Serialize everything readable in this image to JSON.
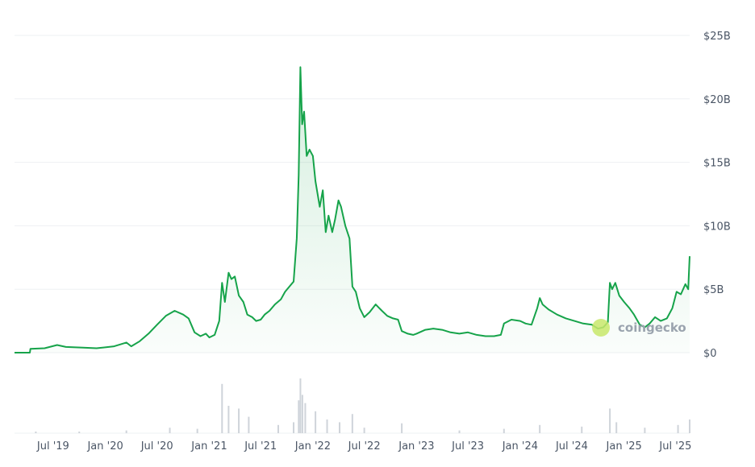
{
  "chart_data": {
    "type": "area",
    "line_color": "#16a34a",
    "fill_color": "#16a34a",
    "volume_color": "#cfd4da",
    "ylim": [
      0,
      25
    ],
    "yticks": [
      {
        "value": 25,
        "label": "$25B"
      },
      {
        "value": 20,
        "label": "$20B"
      },
      {
        "value": 15,
        "label": "$15B"
      },
      {
        "value": 10,
        "label": "$10B"
      },
      {
        "value": 5,
        "label": "$5B"
      },
      {
        "value": 0,
        "label": "$0"
      }
    ],
    "xlim": [
      "2019-02-15",
      "2025-08-20"
    ],
    "xticks": [
      {
        "date": "2019-07-01",
        "label": "Jul '19"
      },
      {
        "date": "2020-01-01",
        "label": "Jan '20"
      },
      {
        "date": "2020-07-01",
        "label": "Jul '20"
      },
      {
        "date": "2021-01-01",
        "label": "Jan '21"
      },
      {
        "date": "2021-07-01",
        "label": "Jul '21"
      },
      {
        "date": "2022-01-01",
        "label": "Jan '22"
      },
      {
        "date": "2022-07-01",
        "label": "Jul '22"
      },
      {
        "date": "2023-01-01",
        "label": "Jan '23"
      },
      {
        "date": "2023-07-01",
        "label": "Jul '23"
      },
      {
        "date": "2024-01-01",
        "label": "Jan '24"
      },
      {
        "date": "2024-07-01",
        "label": "Jul '24"
      },
      {
        "date": "2025-01-01",
        "label": "Jan '25"
      },
      {
        "date": "2025-07-01",
        "label": "Jul '25"
      }
    ],
    "series": [
      {
        "unit": "billions USD",
        "points": [
          [
            "2019-02-15",
            0.0
          ],
          [
            "2019-04-10",
            0.0
          ],
          [
            "2019-04-12",
            0.3
          ],
          [
            "2019-06-01",
            0.35
          ],
          [
            "2019-07-15",
            0.6
          ],
          [
            "2019-08-15",
            0.45
          ],
          [
            "2019-10-15",
            0.4
          ],
          [
            "2019-12-01",
            0.35
          ],
          [
            "2020-02-01",
            0.5
          ],
          [
            "2020-03-15",
            0.8
          ],
          [
            "2020-04-01",
            0.5
          ],
          [
            "2020-05-01",
            0.9
          ],
          [
            "2020-06-01",
            1.5
          ],
          [
            "2020-07-01",
            2.2
          ],
          [
            "2020-08-01",
            2.9
          ],
          [
            "2020-09-01",
            3.3
          ],
          [
            "2020-10-01",
            3.0
          ],
          [
            "2020-10-20",
            2.7
          ],
          [
            "2020-11-10",
            1.6
          ],
          [
            "2020-12-01",
            1.3
          ],
          [
            "2020-12-20",
            1.5
          ],
          [
            "2021-01-01",
            1.2
          ],
          [
            "2021-01-20",
            1.4
          ],
          [
            "2021-02-05",
            2.5
          ],
          [
            "2021-02-15",
            5.5
          ],
          [
            "2021-02-25",
            4.0
          ],
          [
            "2021-03-10",
            6.3
          ],
          [
            "2021-03-20",
            5.8
          ],
          [
            "2021-04-01",
            6.0
          ],
          [
            "2021-04-15",
            4.5
          ],
          [
            "2021-05-01",
            4.0
          ],
          [
            "2021-05-15",
            3.0
          ],
          [
            "2021-06-01",
            2.8
          ],
          [
            "2021-06-15",
            2.5
          ],
          [
            "2021-07-01",
            2.6
          ],
          [
            "2021-07-15",
            3.0
          ],
          [
            "2021-08-01",
            3.3
          ],
          [
            "2021-08-20",
            3.8
          ],
          [
            "2021-09-10",
            4.2
          ],
          [
            "2021-09-25",
            4.8
          ],
          [
            "2021-10-10",
            5.2
          ],
          [
            "2021-10-25",
            5.6
          ],
          [
            "2021-11-05",
            9.0
          ],
          [
            "2021-11-12",
            14.0
          ],
          [
            "2021-11-18",
            22.5
          ],
          [
            "2021-11-24",
            18.0
          ],
          [
            "2021-12-01",
            19.0
          ],
          [
            "2021-12-10",
            15.5
          ],
          [
            "2021-12-20",
            16.0
          ],
          [
            "2022-01-01",
            15.5
          ],
          [
            "2022-01-10",
            13.5
          ],
          [
            "2022-01-25",
            11.5
          ],
          [
            "2022-02-05",
            12.8
          ],
          [
            "2022-02-15",
            9.5
          ],
          [
            "2022-02-25",
            10.8
          ],
          [
            "2022-03-10",
            9.5
          ],
          [
            "2022-03-20",
            10.5
          ],
          [
            "2022-04-01",
            12.0
          ],
          [
            "2022-04-10",
            11.5
          ],
          [
            "2022-04-25",
            10.0
          ],
          [
            "2022-05-10",
            9.0
          ],
          [
            "2022-05-20",
            5.2
          ],
          [
            "2022-06-01",
            4.8
          ],
          [
            "2022-06-15",
            3.5
          ],
          [
            "2022-07-01",
            2.8
          ],
          [
            "2022-07-20",
            3.2
          ],
          [
            "2022-08-10",
            3.8
          ],
          [
            "2022-09-01",
            3.3
          ],
          [
            "2022-09-20",
            2.9
          ],
          [
            "2022-10-10",
            2.7
          ],
          [
            "2022-10-28",
            2.6
          ],
          [
            "2022-11-10",
            1.7
          ],
          [
            "2022-12-01",
            1.5
          ],
          [
            "2022-12-20",
            1.4
          ],
          [
            "2023-01-01",
            1.5
          ],
          [
            "2023-02-01",
            1.8
          ],
          [
            "2023-03-01",
            1.9
          ],
          [
            "2023-04-01",
            1.8
          ],
          [
            "2023-05-01",
            1.6
          ],
          [
            "2023-06-01",
            1.5
          ],
          [
            "2023-07-01",
            1.6
          ],
          [
            "2023-08-01",
            1.4
          ],
          [
            "2023-09-01",
            1.3
          ],
          [
            "2023-10-01",
            1.3
          ],
          [
            "2023-10-25",
            1.4
          ],
          [
            "2023-11-05",
            2.3
          ],
          [
            "2023-12-01",
            2.6
          ],
          [
            "2024-01-01",
            2.5
          ],
          [
            "2024-01-20",
            2.3
          ],
          [
            "2024-02-10",
            2.2
          ],
          [
            "2024-03-01",
            3.5
          ],
          [
            "2024-03-10",
            4.3
          ],
          [
            "2024-03-20",
            3.8
          ],
          [
            "2024-04-10",
            3.4
          ],
          [
            "2024-05-10",
            3.0
          ],
          [
            "2024-06-10",
            2.7
          ],
          [
            "2024-07-10",
            2.5
          ],
          [
            "2024-08-10",
            2.3
          ],
          [
            "2024-09-10",
            2.2
          ],
          [
            "2024-10-01",
            1.9
          ],
          [
            "2024-10-20",
            2.0
          ],
          [
            "2024-11-05",
            2.4
          ],
          [
            "2024-11-12",
            5.5
          ],
          [
            "2024-11-20",
            5.0
          ],
          [
            "2024-12-01",
            5.5
          ],
          [
            "2024-12-15",
            4.5
          ],
          [
            "2025-01-01",
            4.0
          ],
          [
            "2025-01-20",
            3.5
          ],
          [
            "2025-02-05",
            3.0
          ],
          [
            "2025-02-25",
            2.2
          ],
          [
            "2025-03-15",
            2.0
          ],
          [
            "2025-04-01",
            2.3
          ],
          [
            "2025-04-20",
            2.8
          ],
          [
            "2025-05-10",
            2.5
          ],
          [
            "2025-06-01",
            2.7
          ],
          [
            "2025-06-20",
            3.5
          ],
          [
            "2025-07-05",
            4.8
          ],
          [
            "2025-07-20",
            4.6
          ],
          [
            "2025-08-05",
            5.4
          ],
          [
            "2025-08-15",
            5.0
          ],
          [
            "2025-08-20",
            7.6
          ]
        ]
      }
    ],
    "volume": [
      [
        "2019-05-01",
        0.03
      ],
      [
        "2019-10-01",
        0.03
      ],
      [
        "2020-03-15",
        0.05
      ],
      [
        "2020-08-15",
        0.1
      ],
      [
        "2020-11-20",
        0.08
      ],
      [
        "2021-02-15",
        0.9
      ],
      [
        "2021-03-10",
        0.5
      ],
      [
        "2021-04-15",
        0.45
      ],
      [
        "2021-05-20",
        0.3
      ],
      [
        "2021-09-01",
        0.15
      ],
      [
        "2021-10-25",
        0.2
      ],
      [
        "2021-11-12",
        0.6
      ],
      [
        "2021-11-18",
        1.0
      ],
      [
        "2021-11-25",
        0.7
      ],
      [
        "2021-12-05",
        0.55
      ],
      [
        "2022-01-10",
        0.4
      ],
      [
        "2022-02-20",
        0.25
      ],
      [
        "2022-04-05",
        0.2
      ],
      [
        "2022-05-20",
        0.35
      ],
      [
        "2022-07-01",
        0.1
      ],
      [
        "2022-11-10",
        0.18
      ],
      [
        "2023-06-01",
        0.05
      ],
      [
        "2023-11-05",
        0.08
      ],
      [
        "2024-03-10",
        0.15
      ],
      [
        "2024-08-05",
        0.12
      ],
      [
        "2024-11-12",
        0.45
      ],
      [
        "2024-12-05",
        0.2
      ],
      [
        "2025-03-15",
        0.1
      ],
      [
        "2025-07-10",
        0.15
      ],
      [
        "2025-08-20",
        0.25
      ]
    ],
    "watermark": "coingecko"
  }
}
